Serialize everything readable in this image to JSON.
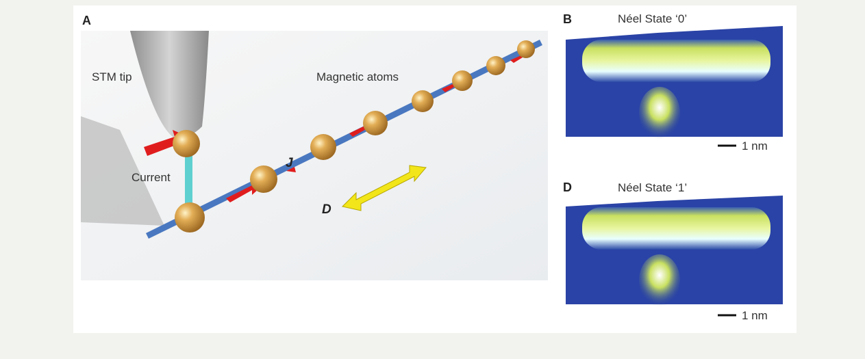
{
  "panel_a": {
    "label": "A",
    "tip_label": "STM tip",
    "atoms_label": "Magnetic atoms",
    "current_label": "Current",
    "exchange_label": "J",
    "dm_label": "D"
  },
  "panel_b": {
    "label": "B",
    "title": "Néel State ‘0’",
    "scale_bar": "1 nm"
  },
  "panel_d": {
    "label": "D",
    "title": "Néel State ‘1’",
    "scale_bar": "1 nm"
  }
}
